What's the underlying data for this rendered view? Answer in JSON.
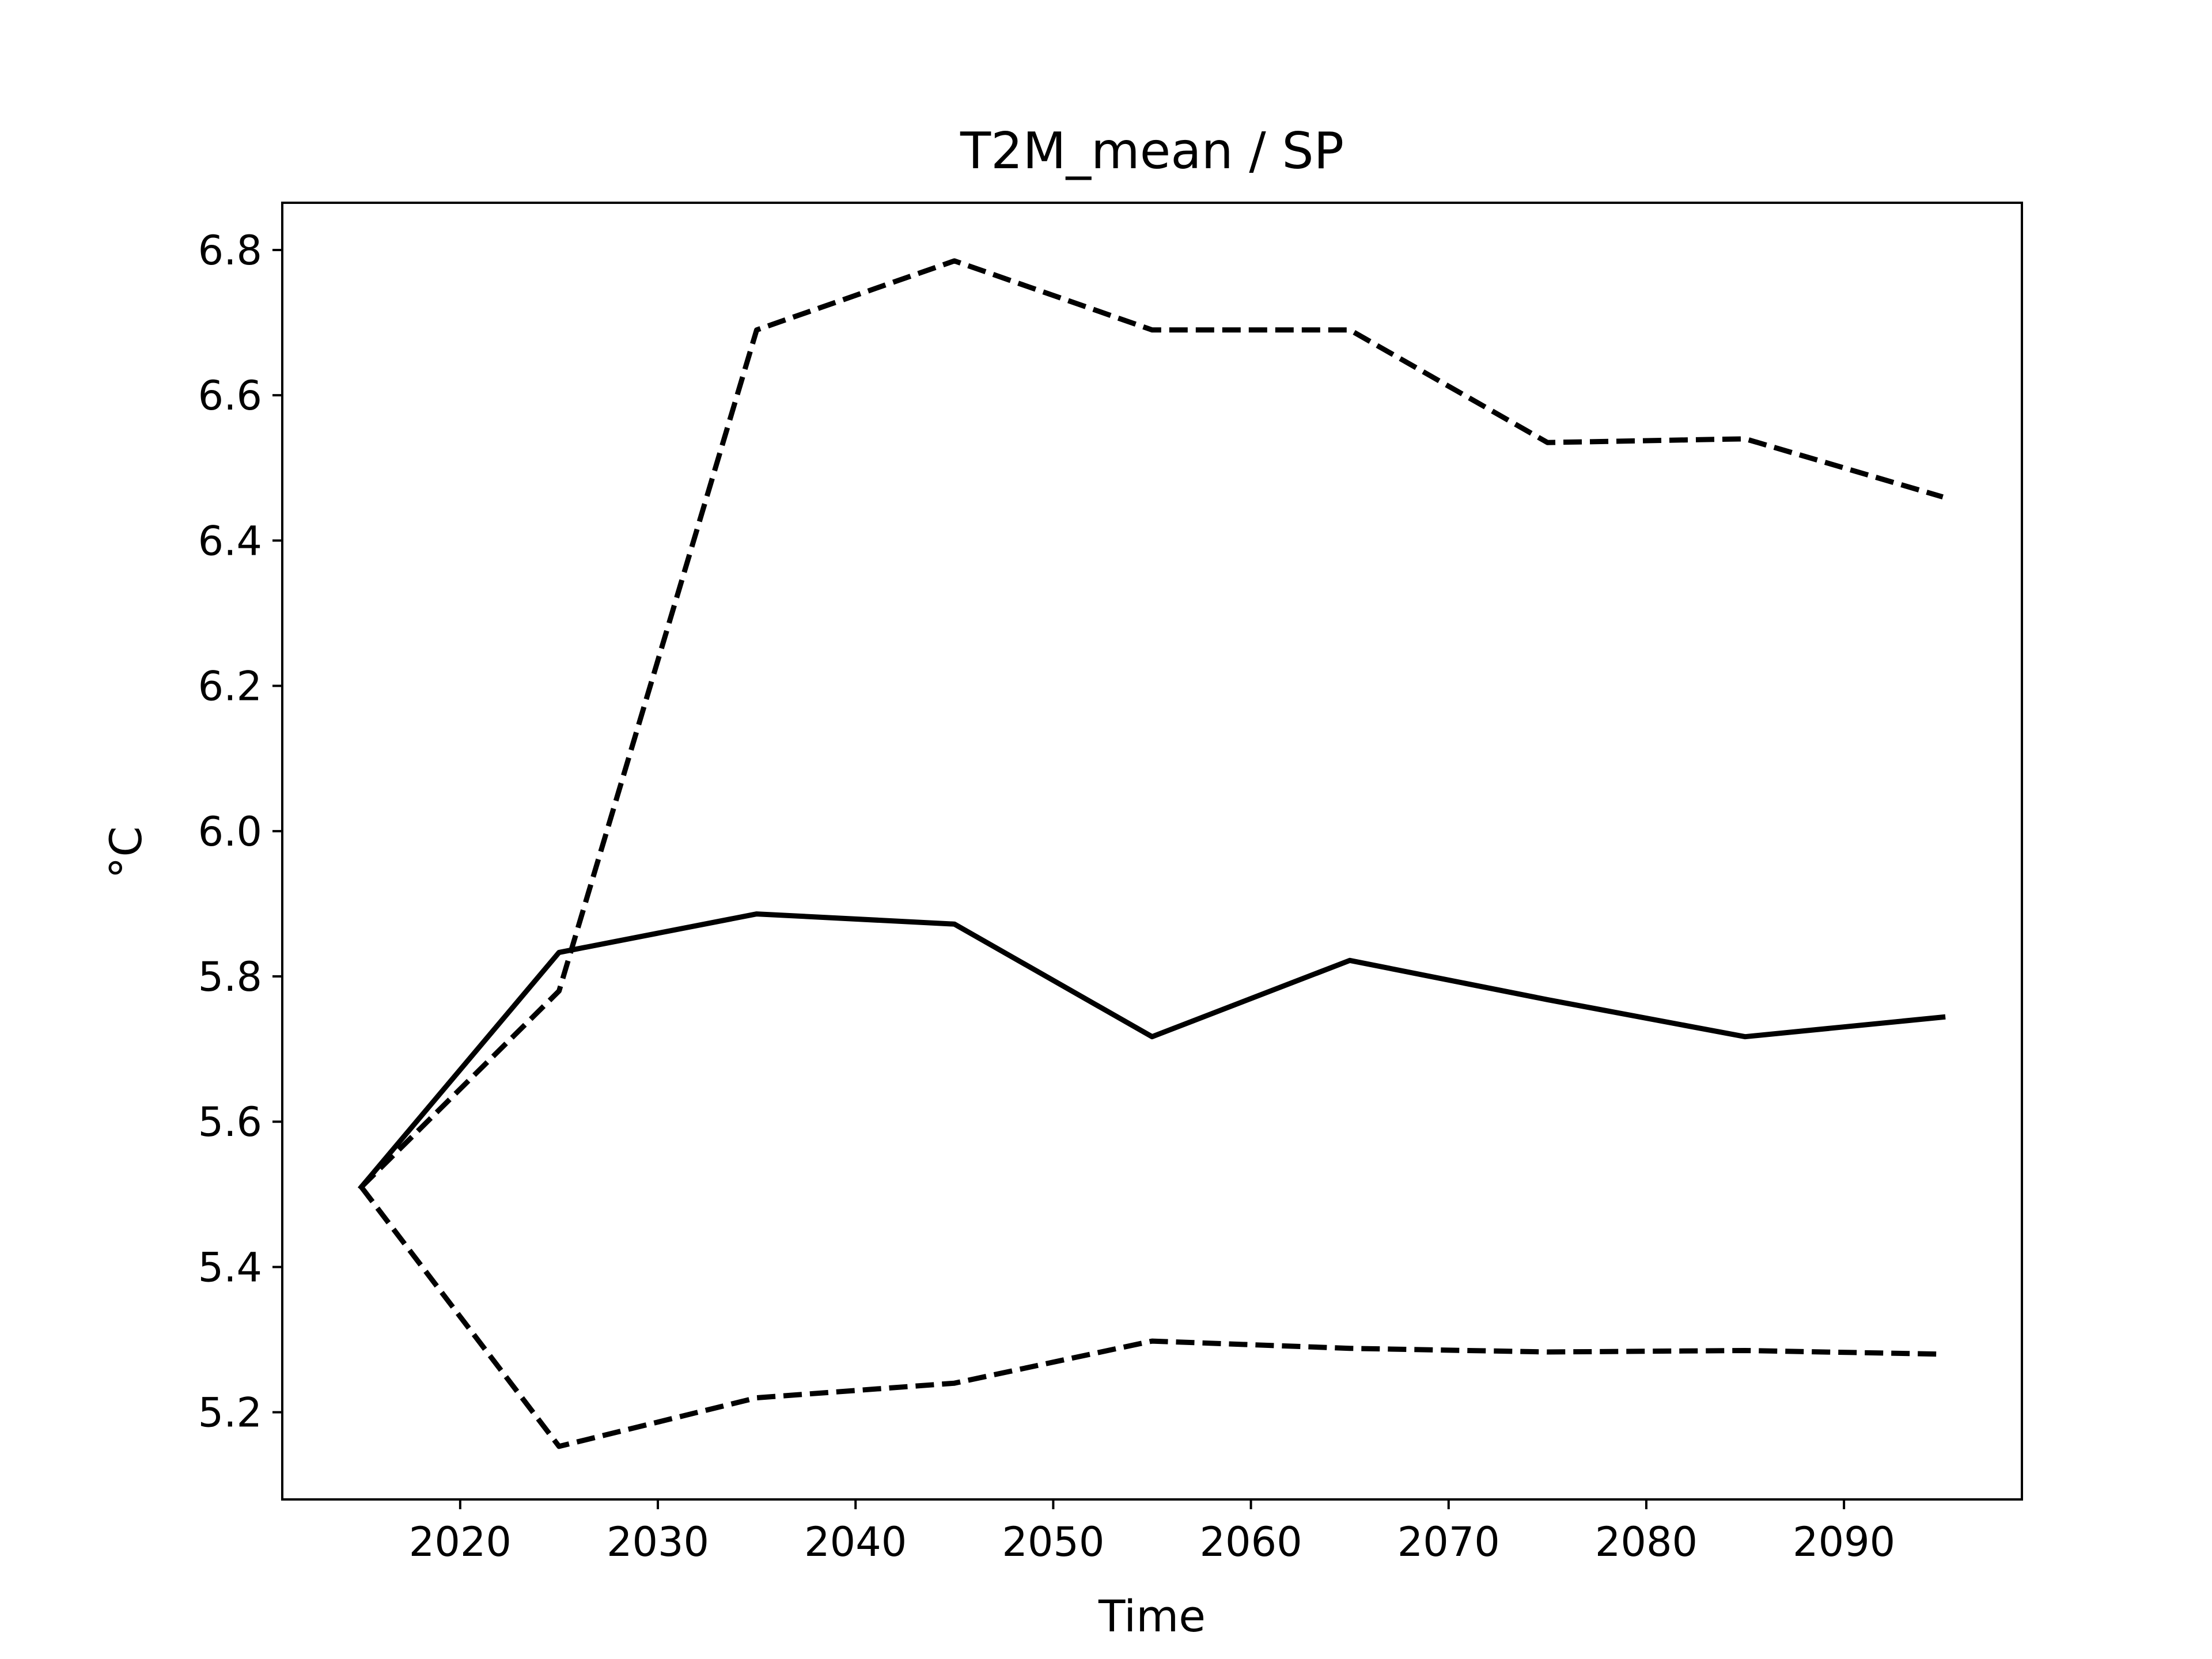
{
  "chart_data": {
    "type": "line",
    "title": "T2M_mean / SP",
    "xlabel": "Time",
    "ylabel": "°C",
    "xlim": [
      2011,
      2099
    ],
    "ylim": [
      5.08,
      6.865
    ],
    "x_ticks": [
      2020,
      2030,
      2040,
      2050,
      2060,
      2070,
      2080,
      2090
    ],
    "y_ticks": [
      5.2,
      5.4,
      5.6,
      5.8,
      6.0,
      6.2,
      6.4,
      6.6,
      6.8
    ],
    "grid": false,
    "x": [
      2015,
      2025,
      2035,
      2045,
      2055,
      2065,
      2075,
      2085,
      2095
    ],
    "series": [
      {
        "values": [
          5.51,
          5.78,
          6.69,
          6.785,
          6.69,
          6.69,
          6.535,
          6.54,
          6.46
        ],
        "style": "dashed",
        "color": "#000000"
      },
      {
        "values": [
          5.51,
          5.833,
          5.886,
          5.872,
          5.717,
          5.822,
          5.768,
          5.717,
          5.744
        ],
        "style": "solid",
        "color": "#000000"
      },
      {
        "values": [
          5.51,
          5.153,
          5.22,
          5.24,
          5.298,
          5.288,
          5.283,
          5.285,
          5.28
        ],
        "style": "dashed",
        "color": "#000000"
      }
    ]
  }
}
